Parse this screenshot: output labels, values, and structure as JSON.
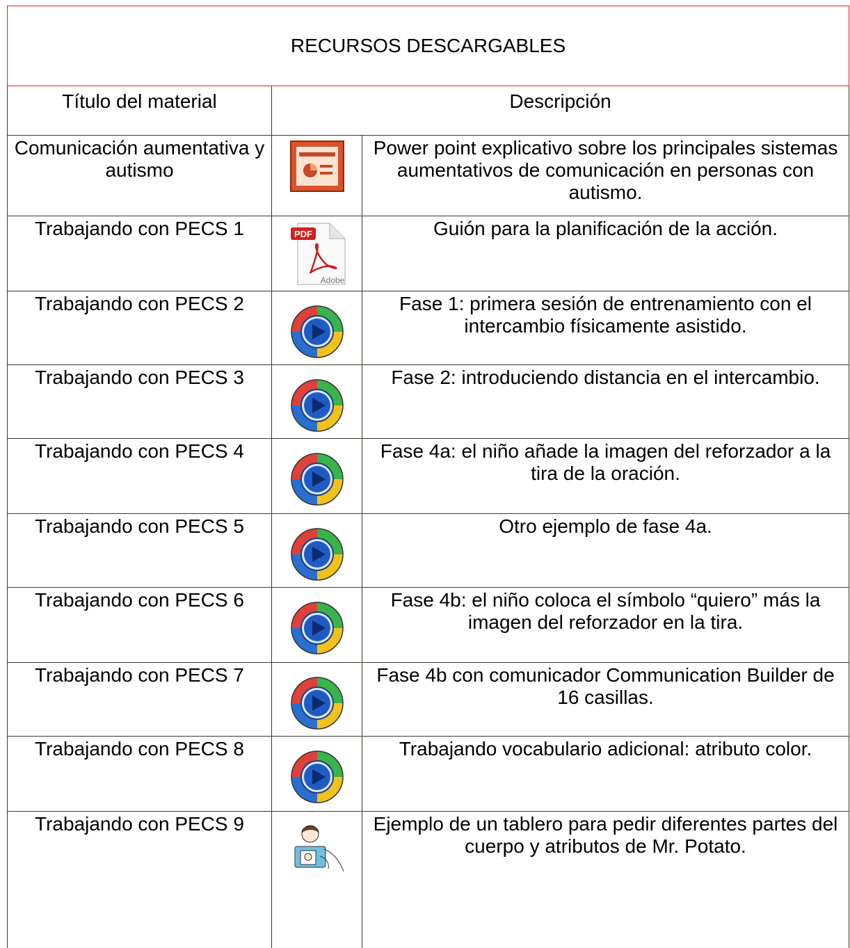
{
  "header": {
    "title": "RECURSOS DESCARGABLES"
  },
  "table": {
    "columns": [
      "Título del material",
      "Descripción"
    ],
    "rows": [
      [
        "Comunicación aumentativa y autismo",
        "Power point explicativo sobre los principales sistemas aumentativos de comunicación en personas con autismo."
      ],
      [
        "Trabajando con PECS 1",
        "Guión para la planificación de la acción."
      ],
      [
        "Trabajando con PECS 2",
        "Fase 1: primera sesión de entrenamiento con el intercambio físicamente asistido."
      ],
      [
        "Trabajando con PECS 3",
        "Fase 2: introduciendo distancia en el intercambio."
      ],
      [
        "Trabajando con PECS 4",
        "Fase 4a: el niño añade la imagen del reforzador a la tira de la oración."
      ],
      [
        "Trabajando con PECS 5",
        "Otro ejemplo de fase 4a."
      ],
      [
        "Trabajando con PECS 6",
        "Fase 4b: el niño coloca el símbolo “quiero” más la imagen del reforzador en la tira."
      ],
      [
        "Trabajando con PECS 7",
        "Fase 4b con comunicador Communication Builder de 16 casillas."
      ],
      [
        "Trabajando con PECS 8",
        "Trabajando vocabulario adicional: atributo color."
      ],
      [
        "Trabajando con PECS 9",
        "Ejemplo de un tablero para pedir diferentes partes del cuerpo y atributos de Mr. Potato."
      ]
    ]
  }
}
